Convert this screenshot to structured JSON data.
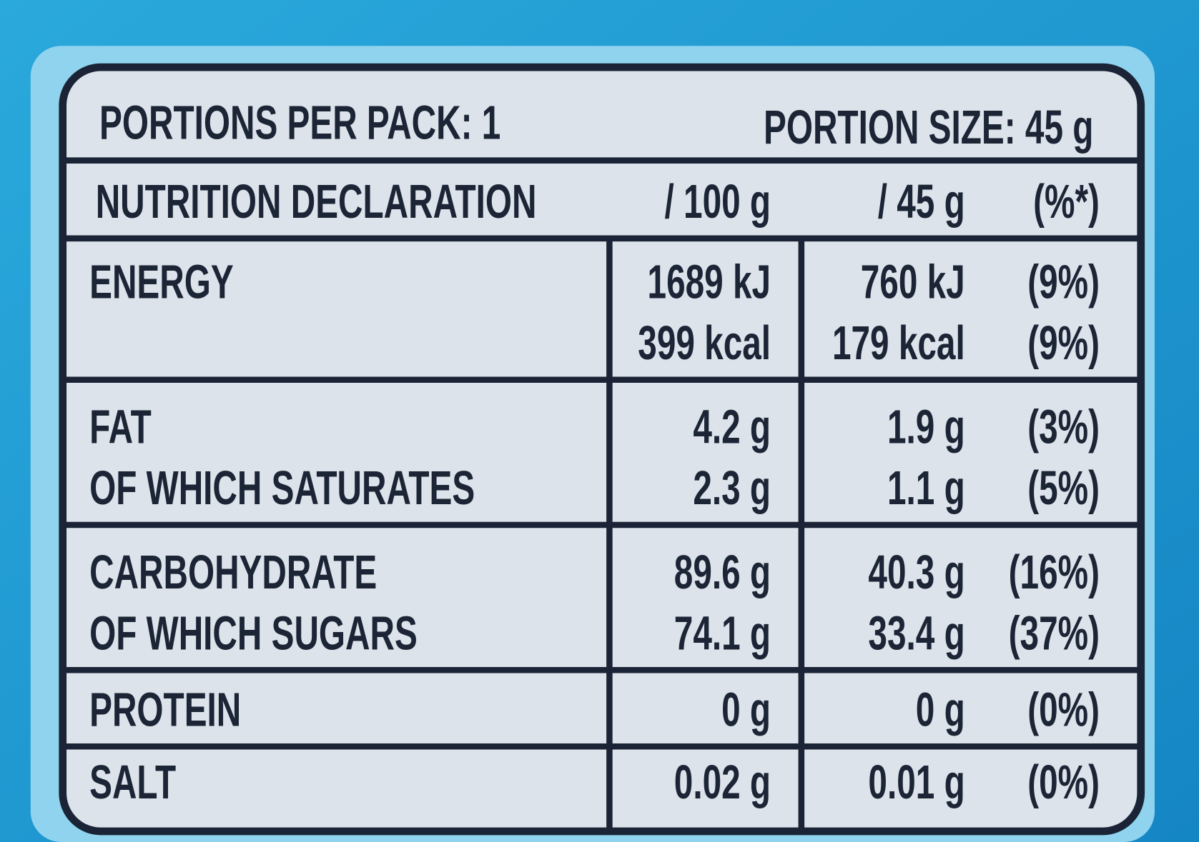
{
  "header": {
    "portions_per_pack": "PORTIONS PER PACK: 1",
    "portion_size": "PORTION SIZE: 45 g"
  },
  "columns": [
    "NUTRITION DECLARATION",
    "/ 100 g",
    "/ 45 g",
    "(%*)"
  ],
  "rows": [
    {
      "lines": [
        {
          "label": "ENERGY",
          "per_100g": "1689 kJ",
          "per_portion": "760 kJ",
          "ri": "(9%)"
        },
        {
          "per_100g": "399 kcal",
          "per_portion": "179 kcal",
          "ri": "(9%)"
        }
      ]
    },
    {
      "lines": [
        {
          "label": "FAT",
          "per_100g": "4.2 g",
          "per_portion": "1.9 g",
          "ri": "(3%)"
        },
        {
          "label": "OF WHICH SATURATES",
          "per_100g": "2.3 g",
          "per_portion": "1.1 g",
          "ri": "(5%)"
        }
      ]
    },
    {
      "lines": [
        {
          "label": "CARBOHYDRATE",
          "per_100g": "89.6 g",
          "per_portion": "40.3 g",
          "ri": "(16%)"
        },
        {
          "label": "OF WHICH SUGARS",
          "per_100g": "74.1 g",
          "per_portion": "33.4 g",
          "ri": "(37%)"
        }
      ]
    },
    {
      "lines": [
        {
          "label": "PROTEIN",
          "per_100g": "0 g",
          "per_portion": "0 g",
          "ri": "(0%)"
        }
      ]
    },
    {
      "lines": [
        {
          "label": "SALT",
          "per_100g": "0.02 g",
          "per_portion": "0.01 g",
          "ri": "(0%)"
        }
      ]
    }
  ]
}
